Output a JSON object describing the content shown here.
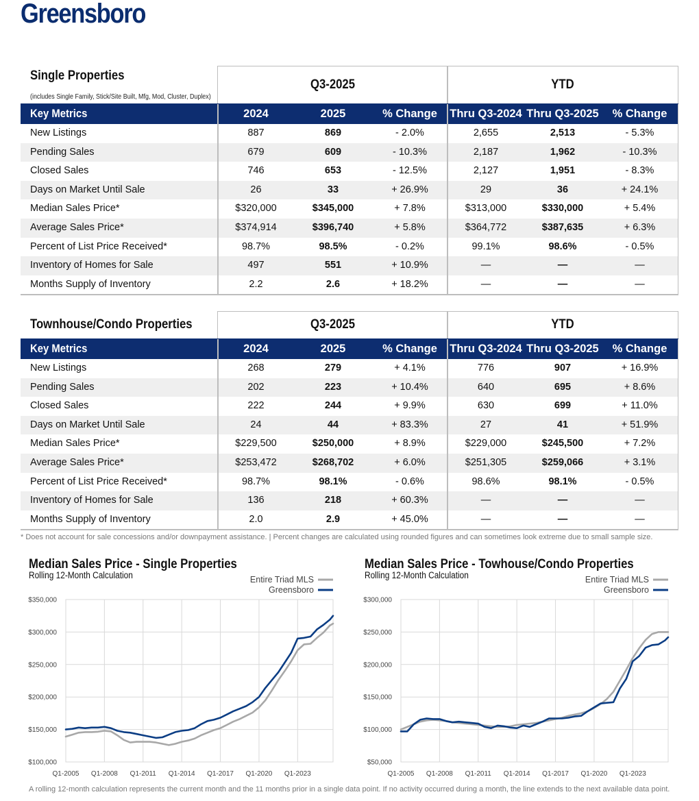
{
  "city": "Greensboro",
  "single": {
    "title": "Single Properties",
    "subtitle": "(includes Single Family, Stick/Site Built, Mfg, Mod, Cluster, Duplex)",
    "period_label": "Q3-2025",
    "ytd_label": "YTD",
    "headers": [
      "Key Metrics",
      "2024",
      "2025",
      "% Change",
      "Thru Q3-2024",
      "Thru Q3-2025",
      "% Change"
    ],
    "rows": [
      [
        "New Listings",
        "887",
        "869",
        "- 2.0%",
        "2,655",
        "2,513",
        "- 5.3%"
      ],
      [
        "Pending Sales",
        "679",
        "609",
        "- 10.3%",
        "2,187",
        "1,962",
        "- 10.3%"
      ],
      [
        "Closed Sales",
        "746",
        "653",
        "- 12.5%",
        "2,127",
        "1,951",
        "- 8.3%"
      ],
      [
        "Days on Market Until Sale",
        "26",
        "33",
        "+ 26.9%",
        "29",
        "36",
        "+ 24.1%"
      ],
      [
        "Median Sales Price*",
        "$320,000",
        "$345,000",
        "+ 7.8%",
        "$313,000",
        "$330,000",
        "+ 5.4%"
      ],
      [
        "Average Sales Price*",
        "$374,914",
        "$396,740",
        "+ 5.8%",
        "$364,772",
        "$387,635",
        "+ 6.3%"
      ],
      [
        "Percent of List Price Received*",
        "98.7%",
        "98.5%",
        "- 0.2%",
        "99.1%",
        "98.6%",
        "- 0.5%"
      ],
      [
        "Inventory of Homes for Sale",
        "497",
        "551",
        "+ 10.9%",
        "—",
        "—",
        "—"
      ],
      [
        "Months Supply of Inventory",
        "2.2",
        "2.6",
        "+ 18.2%",
        "—",
        "—",
        "—"
      ]
    ]
  },
  "townhouse": {
    "title": "Townhouse/Condo Properties",
    "period_label": "Q3-2025",
    "ytd_label": "YTD",
    "headers": [
      "Key Metrics",
      "2024",
      "2025",
      "% Change",
      "Thru Q3-2024",
      "Thru Q3-2025",
      "% Change"
    ],
    "rows": [
      [
        "New Listings",
        "268",
        "279",
        "+ 4.1%",
        "776",
        "907",
        "+ 16.9%"
      ],
      [
        "Pending Sales",
        "202",
        "223",
        "+ 10.4%",
        "640",
        "695",
        "+ 8.6%"
      ],
      [
        "Closed Sales",
        "222",
        "244",
        "+ 9.9%",
        "630",
        "699",
        "+ 11.0%"
      ],
      [
        "Days on Market Until Sale",
        "24",
        "44",
        "+ 83.3%",
        "27",
        "41",
        "+ 51.9%"
      ],
      [
        "Median Sales Price*",
        "$229,500",
        "$250,000",
        "+ 8.9%",
        "$229,000",
        "$245,500",
        "+ 7.2%"
      ],
      [
        "Average Sales Price*",
        "$253,472",
        "$268,702",
        "+ 6.0%",
        "$251,305",
        "$259,066",
        "+ 3.1%"
      ],
      [
        "Percent of List Price Received*",
        "98.7%",
        "98.1%",
        "- 0.6%",
        "98.6%",
        "98.1%",
        "- 0.5%"
      ],
      [
        "Inventory of Homes for Sale",
        "136",
        "218",
        "+ 60.3%",
        "—",
        "—",
        "—"
      ],
      [
        "Months Supply of Inventory",
        "2.0",
        "2.9",
        "+ 45.0%",
        "—",
        "—",
        "—"
      ]
    ]
  },
  "footnote": "* Does not account for sale concessions and/or downpayment assistance. | Percent changes are calculated using rounded figures and can sometimes look extreme due to small sample size.",
  "bottom_note": "A rolling 12-month calculation represents the current month and the 11 months prior in a single data point. If no activity occurred during a month, the line extends to the next available data point.",
  "colors": {
    "navy": "#0d2d70",
    "triad_gray": "#a8a8a8",
    "greensboro_blue": "#0b3d84"
  },
  "chart_data": [
    {
      "type": "line",
      "title": "Median Sales Price - Single Properties",
      "subtitle": "Rolling 12-Month Calculation",
      "x_ticks": [
        "Q1-2005",
        "Q1-2008",
        "Q1-2011",
        "Q1-2014",
        "Q1-2017",
        "Q1-2020",
        "Q1-2023"
      ],
      "x_range": [
        2005.0,
        2025.75
      ],
      "y_ticks": [
        "$100,000",
        "$150,000",
        "$200,000",
        "$250,000",
        "$300,000",
        "$350,000"
      ],
      "ylim": [
        100000,
        350000
      ],
      "legend_position": "top-right",
      "series": [
        {
          "name": "Entire Triad MLS",
          "color": "#a8a8a8",
          "x": [
            2005.0,
            2005.5,
            2006.0,
            2006.5,
            2007.0,
            2007.5,
            2008.0,
            2008.5,
            2009.0,
            2009.5,
            2010.0,
            2010.5,
            2011.0,
            2011.5,
            2012.0,
            2012.5,
            2013.0,
            2013.5,
            2014.0,
            2014.5,
            2015.0,
            2015.5,
            2016.0,
            2016.5,
            2017.0,
            2017.5,
            2018.0,
            2018.5,
            2019.0,
            2019.5,
            2020.0,
            2020.5,
            2021.0,
            2021.5,
            2022.0,
            2022.5,
            2023.0,
            2023.5,
            2024.0,
            2024.5,
            2025.0,
            2025.5,
            2025.75
          ],
          "values": [
            139000,
            142000,
            145000,
            146000,
            146000,
            146500,
            148000,
            147000,
            141000,
            134000,
            130000,
            131000,
            131000,
            131000,
            130000,
            128000,
            126000,
            128000,
            131000,
            133000,
            136000,
            141000,
            145000,
            149000,
            152000,
            157000,
            162000,
            166000,
            171000,
            176000,
            184000,
            195000,
            210000,
            226000,
            240000,
            255000,
            272000,
            281000,
            282000,
            291000,
            299000,
            310000,
            313000
          ]
        },
        {
          "name": "Greensboro",
          "color": "#0b3d84",
          "x": [
            2005.0,
            2005.5,
            2006.0,
            2006.5,
            2007.0,
            2007.5,
            2008.0,
            2008.5,
            2009.0,
            2009.5,
            2010.0,
            2010.5,
            2011.0,
            2011.5,
            2012.0,
            2012.5,
            2013.0,
            2013.5,
            2014.0,
            2014.5,
            2015.0,
            2015.5,
            2016.0,
            2016.5,
            2017.0,
            2017.5,
            2018.0,
            2018.5,
            2019.0,
            2019.5,
            2020.0,
            2020.5,
            2021.0,
            2021.5,
            2022.0,
            2022.5,
            2023.0,
            2023.5,
            2024.0,
            2024.5,
            2025.0,
            2025.5,
            2025.75
          ],
          "values": [
            150000,
            151000,
            153000,
            152000,
            153000,
            153000,
            154000,
            152000,
            148000,
            146000,
            145000,
            143000,
            141000,
            139000,
            137000,
            138000,
            142000,
            146000,
            148000,
            149000,
            152000,
            158000,
            163000,
            165000,
            168000,
            173000,
            178000,
            182000,
            186000,
            192000,
            200000,
            214000,
            226000,
            238000,
            253000,
            268000,
            290000,
            291000,
            293000,
            304000,
            311000,
            319000,
            325000
          ]
        }
      ]
    },
    {
      "type": "line",
      "title": "Median Sales Price - Towhouse/Condo Properties",
      "subtitle": "Rolling 12-Month Calculation",
      "x_ticks": [
        "Q1-2005",
        "Q1-2008",
        "Q1-2011",
        "Q1-2014",
        "Q1-2017",
        "Q1-2020",
        "Q1-2023"
      ],
      "x_range": [
        2005.0,
        2025.75
      ],
      "y_ticks": [
        "$50,000",
        "$100,000",
        "$150,000",
        "$200,000",
        "$250,000",
        "$300,000"
      ],
      "ylim": [
        50000,
        300000
      ],
      "legend_position": "top-right",
      "series": [
        {
          "name": "Entire Triad MLS",
          "color": "#a8a8a8",
          "x": [
            2005.0,
            2005.5,
            2006.0,
            2006.5,
            2007.0,
            2007.5,
            2008.0,
            2008.5,
            2009.0,
            2009.5,
            2010.0,
            2010.5,
            2011.0,
            2011.5,
            2012.0,
            2012.5,
            2013.0,
            2013.5,
            2014.0,
            2014.5,
            2015.0,
            2015.5,
            2016.0,
            2016.5,
            2017.0,
            2017.5,
            2018.0,
            2018.5,
            2019.0,
            2019.5,
            2020.0,
            2020.5,
            2021.0,
            2021.5,
            2022.0,
            2022.5,
            2023.0,
            2023.5,
            2024.0,
            2024.5,
            2025.0,
            2025.5,
            2025.75
          ],
          "values": [
            100000,
            104000,
            108000,
            112000,
            114000,
            115000,
            114000,
            113000,
            111000,
            110000,
            109000,
            108000,
            107000,
            106000,
            105000,
            104000,
            104000,
            105000,
            107000,
            108000,
            109000,
            110000,
            112000,
            114000,
            116000,
            118000,
            121000,
            123000,
            125000,
            128000,
            133000,
            139000,
            147000,
            158000,
            175000,
            192000,
            210000,
            225000,
            238000,
            247000,
            250000,
            250000,
            250000
          ]
        },
        {
          "name": "Greensboro",
          "color": "#0b3d84",
          "x": [
            2005.0,
            2005.5,
            2006.0,
            2006.5,
            2007.0,
            2007.5,
            2008.0,
            2008.5,
            2009.0,
            2009.5,
            2010.0,
            2010.5,
            2011.0,
            2011.5,
            2012.0,
            2012.5,
            2013.0,
            2013.5,
            2014.0,
            2014.5,
            2015.0,
            2015.5,
            2016.0,
            2016.5,
            2017.0,
            2017.5,
            2018.0,
            2018.5,
            2019.0,
            2019.5,
            2020.0,
            2020.5,
            2021.0,
            2021.5,
            2022.0,
            2022.5,
            2023.0,
            2023.5,
            2024.0,
            2024.5,
            2025.0,
            2025.5,
            2025.75
          ],
          "values": [
            97000,
            97000,
            108000,
            115000,
            117000,
            116000,
            116000,
            113000,
            111000,
            112000,
            111000,
            110000,
            109000,
            104000,
            102000,
            106000,
            105000,
            103000,
            102000,
            106000,
            104000,
            108000,
            112000,
            117000,
            117000,
            117000,
            118000,
            120000,
            121000,
            128000,
            134000,
            140000,
            141000,
            142000,
            163000,
            178000,
            205000,
            213000,
            226000,
            230000,
            231000,
            237000,
            242000
          ]
        }
      ]
    }
  ]
}
